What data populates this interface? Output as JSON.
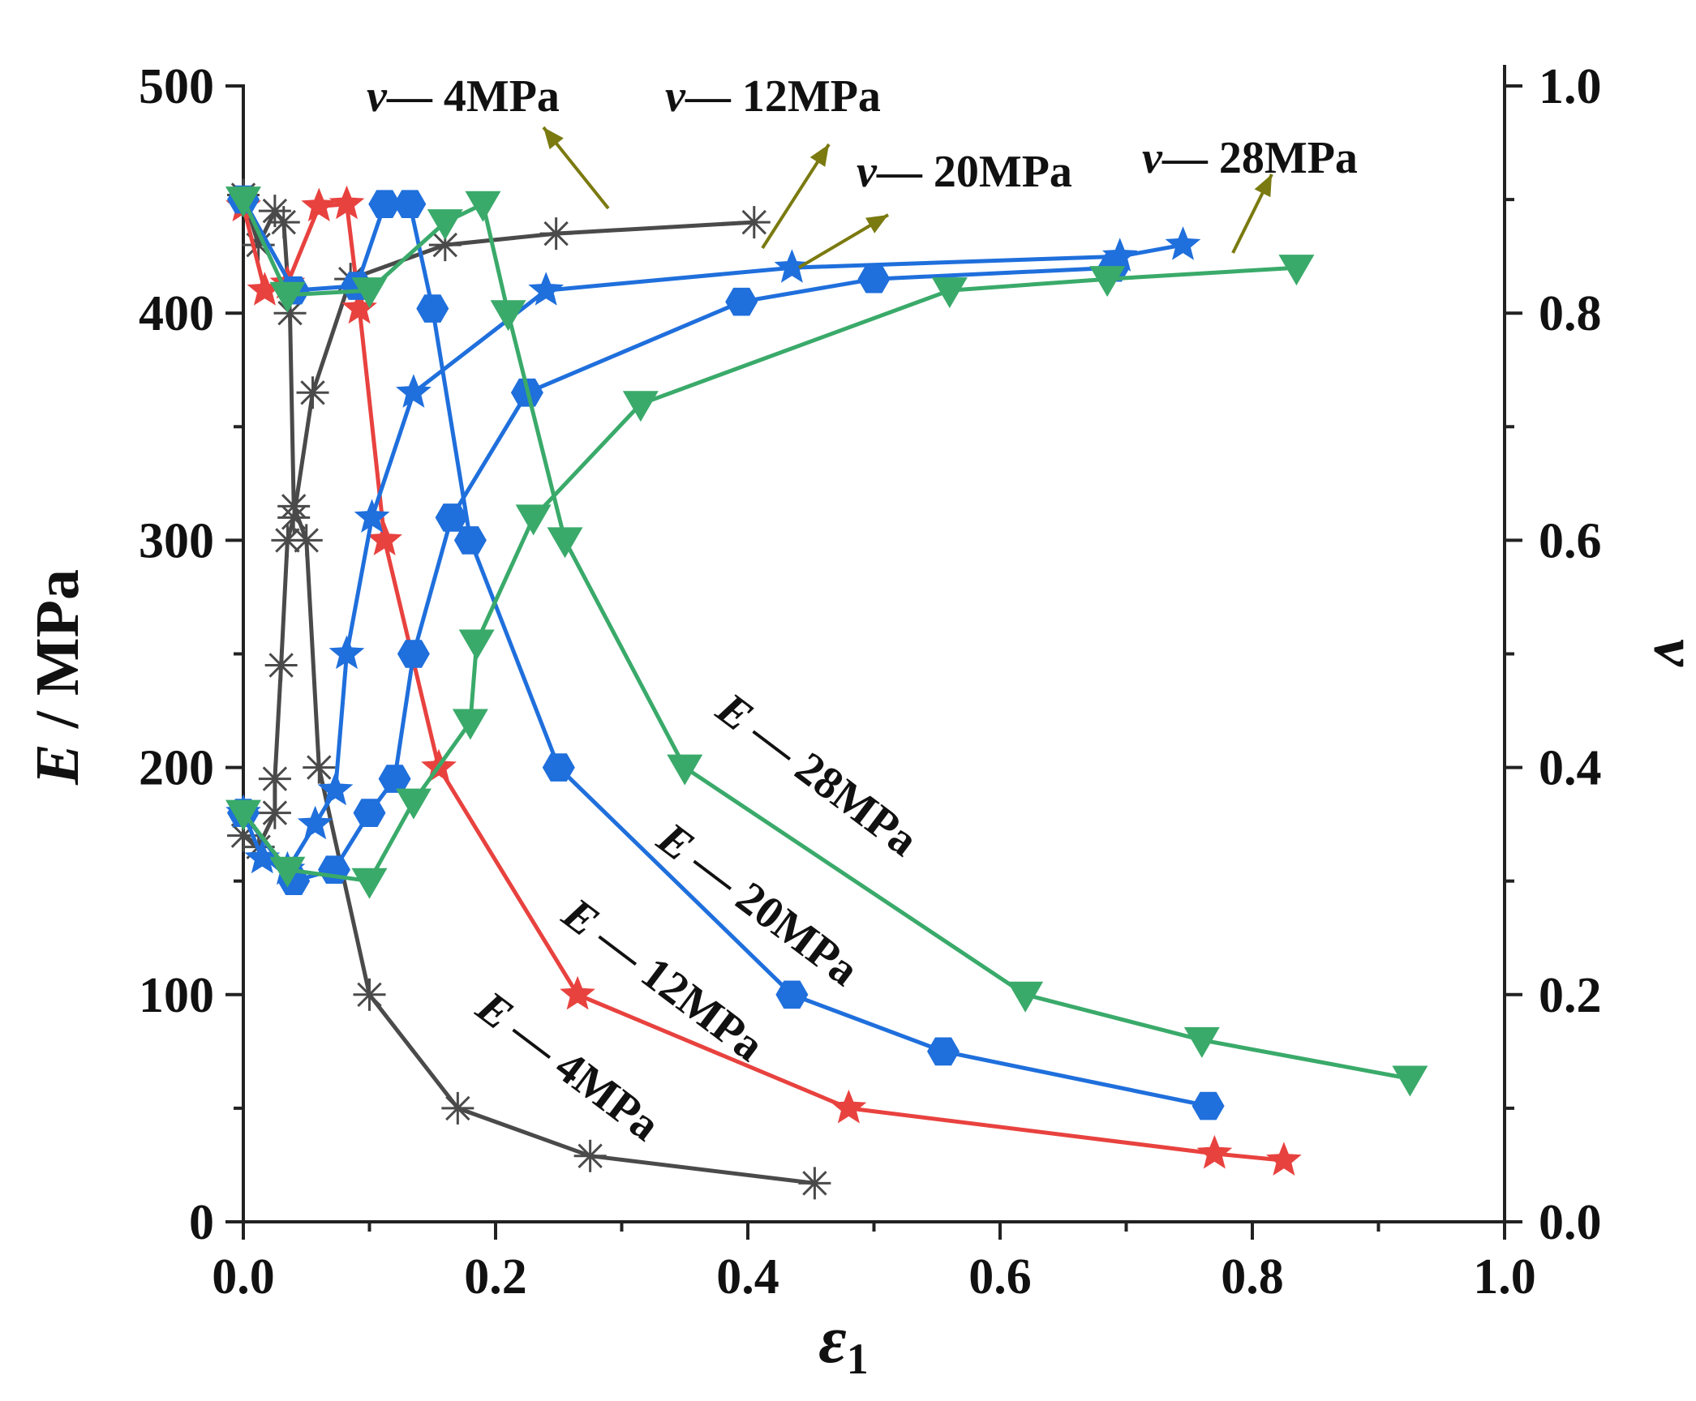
{
  "chart_data": {
    "type": "line",
    "xlabel": "ε",
    "xlabel_subscript": "1",
    "ylabel_left_italic": "E",
    "ylabel_left_rest": " / MPa",
    "ylabel_right": "v",
    "xlim": [
      0.0,
      1.0
    ],
    "ylim_left": [
      0,
      500
    ],
    "ylim_right": [
      0.0,
      1.0
    ],
    "x_ticks": [
      "0.0",
      "0.2",
      "0.4",
      "0.6",
      "0.8",
      "1.0"
    ],
    "y_left_ticks": [
      "0",
      "100",
      "200",
      "300",
      "400",
      "500"
    ],
    "y_right_ticks": [
      "0.0",
      "0.2",
      "0.4",
      "0.6",
      "0.8",
      "1.0"
    ],
    "series": [
      {
        "id": "e4",
        "axis": "left",
        "color": "#4a4a4a",
        "marker": "asterisk",
        "x": [
          0.0,
          0.012,
          0.025,
          0.032,
          0.037,
          0.04,
          0.05,
          0.06,
          0.1,
          0.17,
          0.275,
          0.453
        ],
        "y": [
          452,
          430,
          445,
          440,
          400,
          315,
          300,
          200,
          100,
          50,
          29,
          17
        ]
      },
      {
        "id": "v4",
        "axis": "right",
        "color": "#4a4a4a",
        "marker": "asterisk",
        "x": [
          0.0,
          0.012,
          0.025,
          0.025,
          0.03,
          0.035,
          0.04,
          0.055,
          0.085,
          0.16,
          0.248,
          0.405
        ],
        "y": [
          0.34,
          0.33,
          0.36,
          0.39,
          0.49,
          0.6,
          0.62,
          0.73,
          0.83,
          0.86,
          0.87,
          0.88
        ]
      },
      {
        "id": "e12",
        "axis": "left",
        "color": "#e8423f",
        "marker": "star",
        "x": [
          0.0,
          0.017,
          0.035,
          0.06,
          0.082,
          0.092,
          0.112,
          0.155,
          0.265,
          0.48,
          0.77,
          0.825
        ],
        "y": [
          447,
          410,
          413,
          447,
          448,
          402,
          300,
          200,
          100,
          50,
          30,
          27
        ]
      },
      {
        "id": "v12",
        "axis": "right",
        "color": "#1f6fdc",
        "marker": "star",
        "x": [
          0.0,
          0.015,
          0.035,
          0.057,
          0.073,
          0.082,
          0.102,
          0.135,
          0.24,
          0.435,
          0.695,
          0.745
        ],
        "y": [
          0.36,
          0.32,
          0.31,
          0.35,
          0.38,
          0.5,
          0.62,
          0.73,
          0.82,
          0.84,
          0.85,
          0.86
        ]
      },
      {
        "id": "e20",
        "axis": "left",
        "color": "#1f6fdc",
        "marker": "hexagon",
        "x": [
          0.0,
          0.04,
          0.09,
          0.112,
          0.132,
          0.15,
          0.18,
          0.25,
          0.435,
          0.555,
          0.765
        ],
        "y": [
          450,
          410,
          412,
          448,
          448,
          402,
          300,
          200,
          100,
          75,
          51
        ]
      },
      {
        "id": "v20",
        "axis": "right",
        "color": "#1f6fdc",
        "marker": "hexagon",
        "x": [
          0.0,
          0.04,
          0.072,
          0.1,
          0.12,
          0.135,
          0.165,
          0.225,
          0.395,
          0.5,
          0.69
        ],
        "y": [
          0.36,
          0.3,
          0.31,
          0.36,
          0.39,
          0.5,
          0.62,
          0.73,
          0.81,
          0.83,
          0.84
        ]
      },
      {
        "id": "e28",
        "axis": "left",
        "color": "#3aaa6a",
        "marker": "triangle",
        "x": [
          0.0,
          0.035,
          0.1,
          0.16,
          0.19,
          0.21,
          0.255,
          0.35,
          0.62,
          0.76,
          0.925
        ],
        "y": [
          450,
          408,
          410,
          440,
          448,
          400,
          300,
          200,
          100,
          80,
          63
        ]
      },
      {
        "id": "v28",
        "axis": "right",
        "color": "#3aaa6a",
        "marker": "triangle",
        "x": [
          0.0,
          0.035,
          0.1,
          0.135,
          0.18,
          0.185,
          0.23,
          0.315,
          0.56,
          0.685,
          0.835
        ],
        "y": [
          0.36,
          0.31,
          0.3,
          0.37,
          0.44,
          0.51,
          0.62,
          0.72,
          0.82,
          0.83,
          0.84
        ]
      }
    ],
    "annotations": [
      {
        "id": "lbl-v4",
        "italic": "v",
        "text": "— 4MPa"
      },
      {
        "id": "lbl-v12",
        "italic": "v",
        "text": "— 12MPa"
      },
      {
        "id": "lbl-v20",
        "italic": "v",
        "text": "— 20MPa"
      },
      {
        "id": "lbl-v28",
        "italic": "v",
        "text": "— 28MPa"
      },
      {
        "id": "lbl-e28",
        "italic": "E",
        "text": " — 28MPa"
      },
      {
        "id": "lbl-e20",
        "italic": "E",
        "text": " — 20MPa"
      },
      {
        "id": "lbl-e12",
        "italic": "E",
        "text": " — 12MPa"
      },
      {
        "id": "lbl-e4",
        "italic": "E",
        "text": " — 4MPa"
      }
    ],
    "arrow_color": "#7a7a10"
  }
}
